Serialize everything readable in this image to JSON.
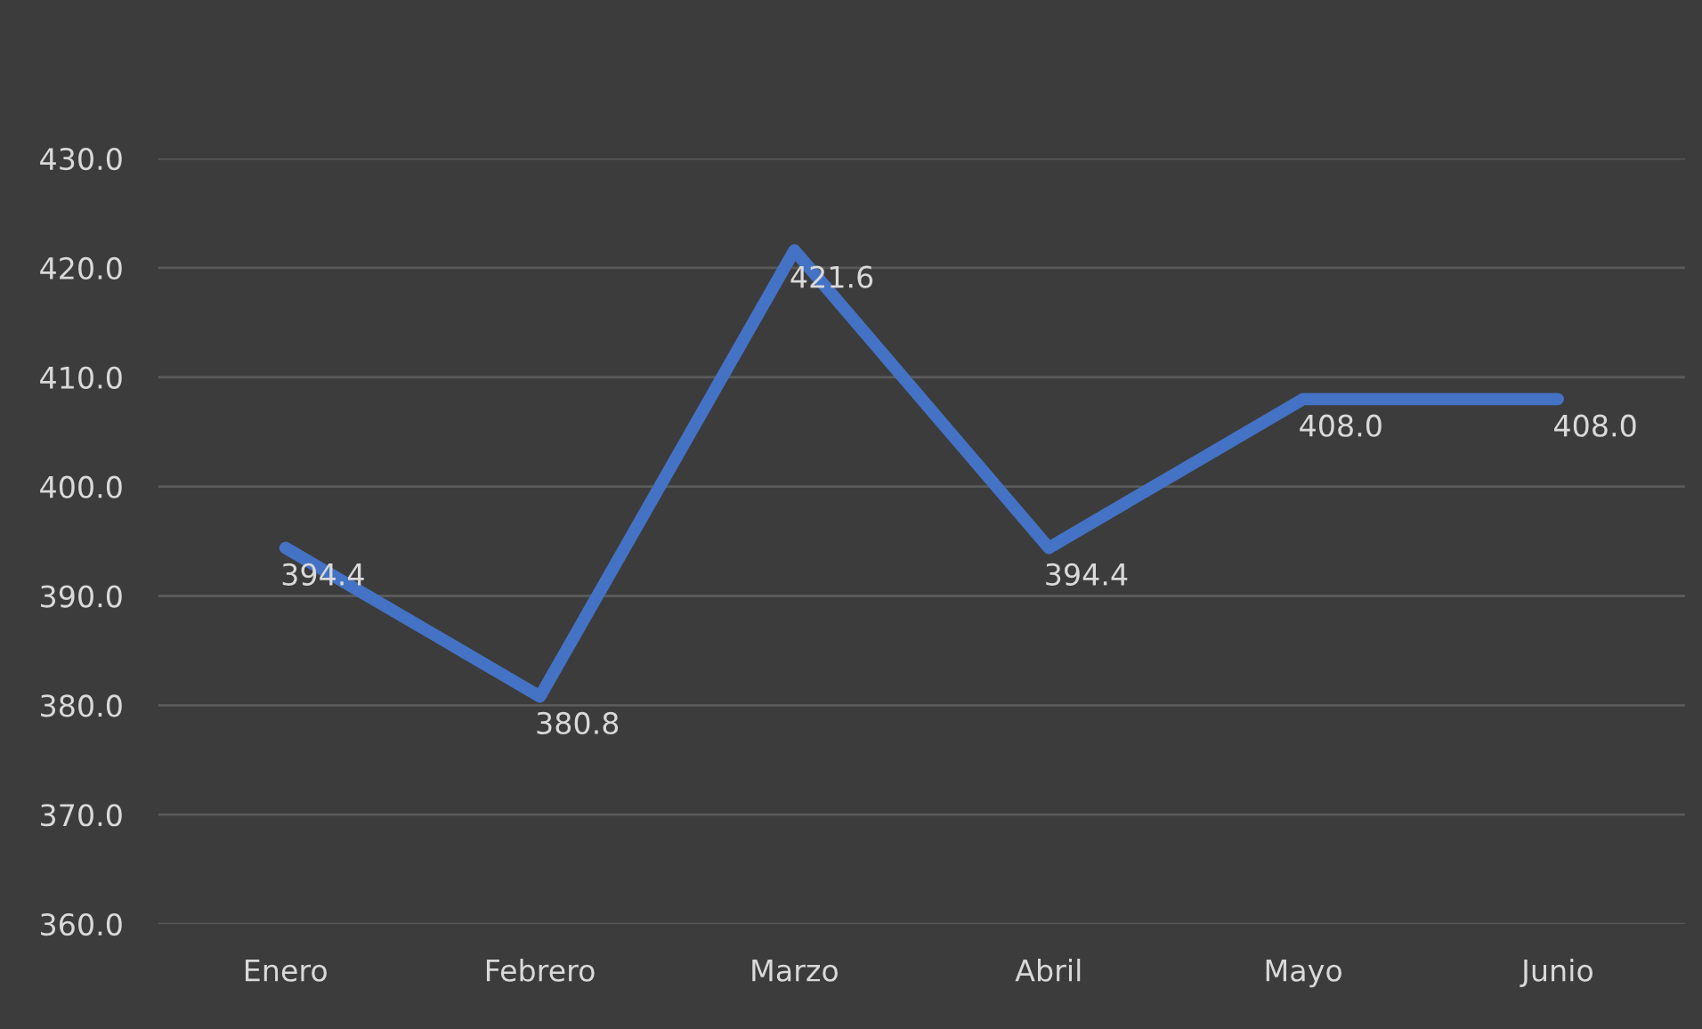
{
  "chart_data": {
    "type": "line",
    "categories": [
      "Enero",
      "Febrero",
      "Marzo",
      "Abril",
      "Mayo",
      "Junio"
    ],
    "series": [
      {
        "color": "#4472c4",
        "values": [
          394.4,
          380.8,
          421.6,
          394.4,
          408.0,
          408.0
        ],
        "value_labels": [
          "394.4",
          "380.8",
          "421.6",
          "394.4",
          "408.0",
          "408.0"
        ]
      }
    ],
    "ylim": [
      360,
      430
    ],
    "yticks": [
      {
        "value": 360,
        "label": "360.0"
      },
      {
        "value": 370,
        "label": "370.0"
      },
      {
        "value": 380,
        "label": "380.0"
      },
      {
        "value": 390,
        "label": "390.0"
      },
      {
        "value": 400,
        "label": "400.0"
      },
      {
        "value": 410,
        "label": "410.0"
      },
      {
        "value": 420,
        "label": "420.0"
      },
      {
        "value": 430,
        "label": "430.0"
      }
    ],
    "grid": "y",
    "marker": "none",
    "line_style": "solid",
    "legend": false
  }
}
